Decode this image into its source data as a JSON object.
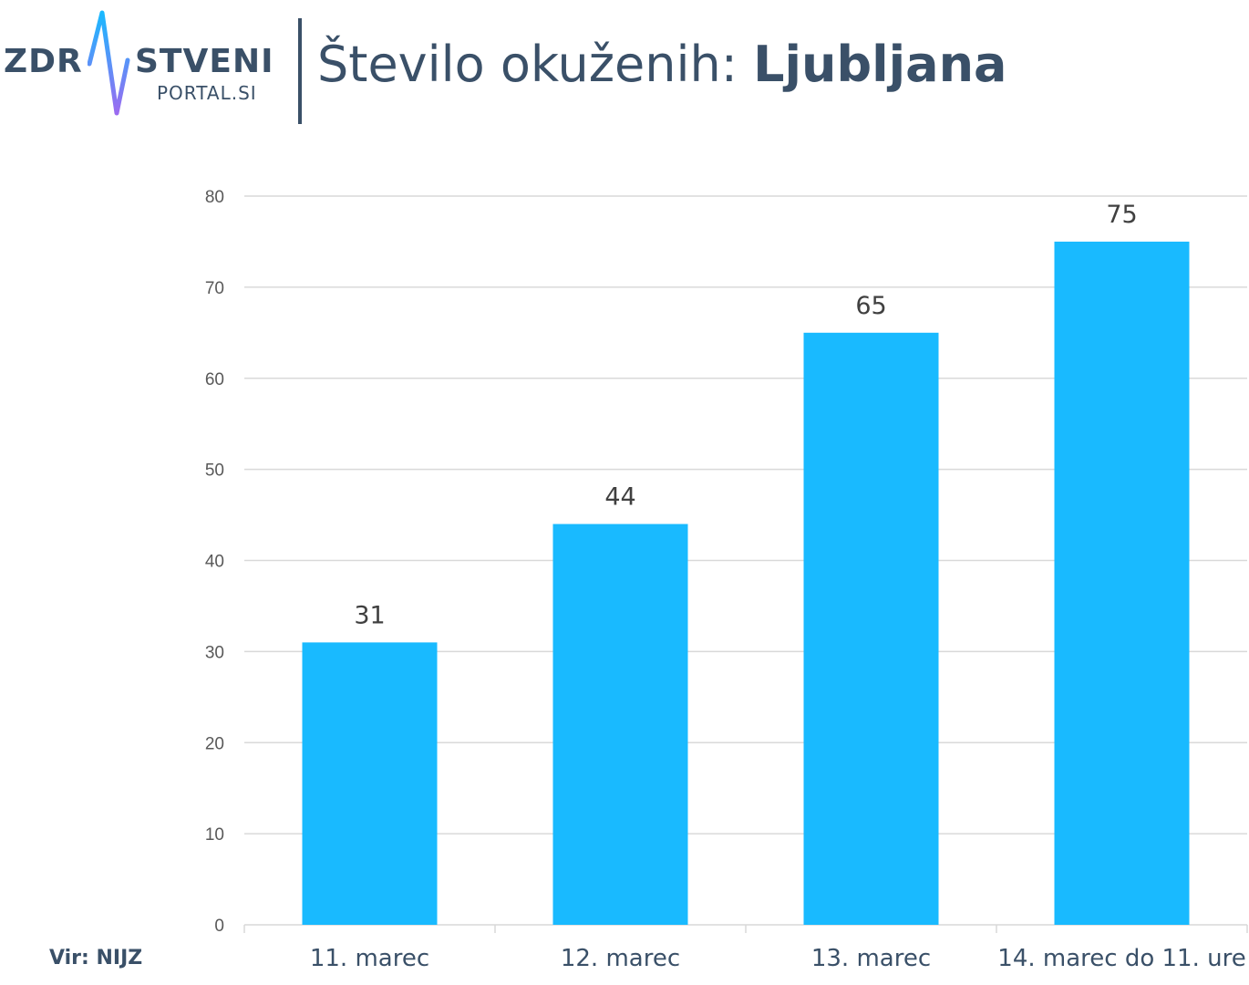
{
  "logo": {
    "word_left": "ZDR",
    "word_right": "STVENI",
    "sub": "PORTAL.SI",
    "colors": {
      "text": "#3a5068",
      "pulse_top": "#19b9ff",
      "pulse_bottom": "#9b6bf0"
    }
  },
  "title": {
    "lead": "Število okuženih:",
    "place": "Ljubljana"
  },
  "source": "Vir: NIJZ",
  "colors": {
    "bar": "#19baff",
    "grid": "#d9d9d9",
    "tick_text": "#595959",
    "label_text": "#404040",
    "axis_label_text": "#3a5068"
  },
  "chart_data": {
    "type": "bar",
    "title": "Število okuženih: Ljubljana",
    "xlabel": "",
    "ylabel": "",
    "categories": [
      "11. marec",
      "12. marec",
      "13. marec",
      "14. marec do 11. ure"
    ],
    "values": [
      31,
      44,
      65,
      75
    ],
    "data_labels": [
      "31",
      "44",
      "65",
      "75"
    ],
    "ylim": [
      0,
      80
    ],
    "yticks": [
      0,
      10,
      20,
      30,
      40,
      50,
      60,
      70,
      80
    ],
    "grid": true,
    "legend": "none"
  }
}
